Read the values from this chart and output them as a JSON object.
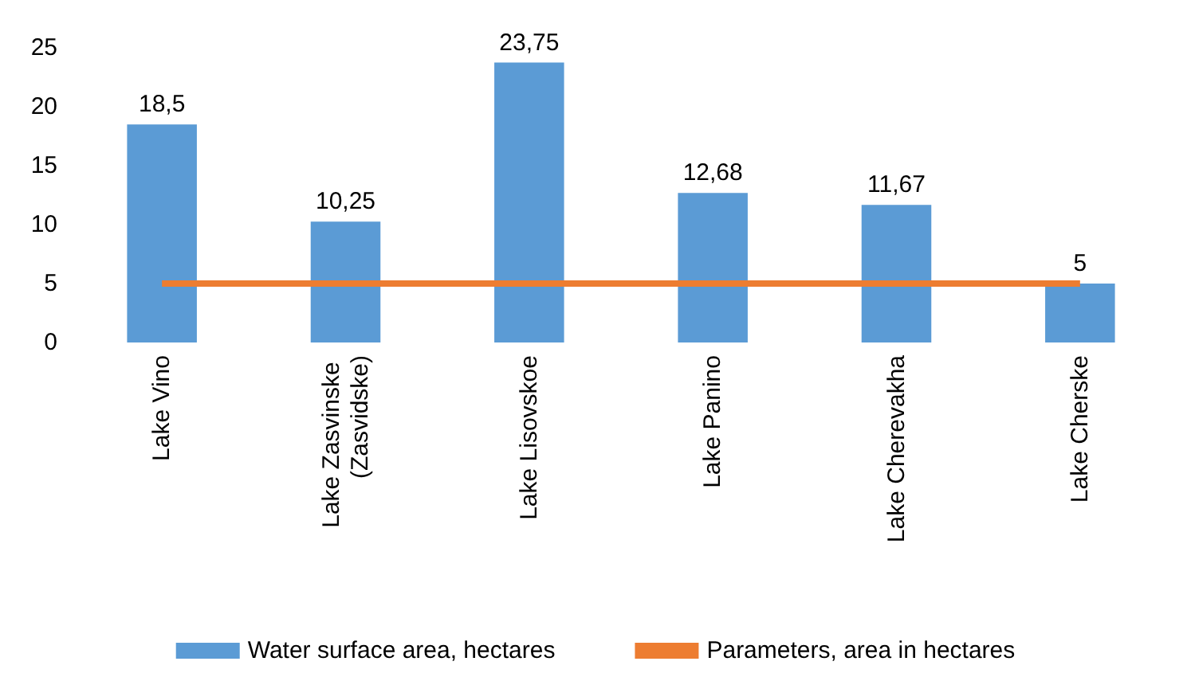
{
  "chart_data": {
    "type": "bar",
    "categories": [
      "Lake Vino",
      "Lake Zasvinske (Zasvidske)",
      "Lake Lisovskoe",
      "Lake Panino",
      "Lake Cherevakha",
      "Lake Cherske"
    ],
    "series": [
      {
        "name": "Water surface area, hectares",
        "color": "#5b9bd5",
        "values": [
          18.5,
          10.25,
          23.75,
          12.68,
          11.67,
          5
        ],
        "value_labels": [
          "18,5",
          "10,25",
          "23,75",
          "12,68",
          "11,67",
          "5"
        ]
      },
      {
        "name": "Parameters, area in hectares",
        "type": "line",
        "color": "#ed7d31",
        "values": [
          5,
          5,
          5,
          5,
          5,
          5
        ]
      }
    ],
    "ylim": [
      0,
      25
    ],
    "yticks": [
      0,
      5,
      10,
      15,
      20,
      25
    ],
    "grid": false,
    "legend": "bottom",
    "marker": "none"
  }
}
